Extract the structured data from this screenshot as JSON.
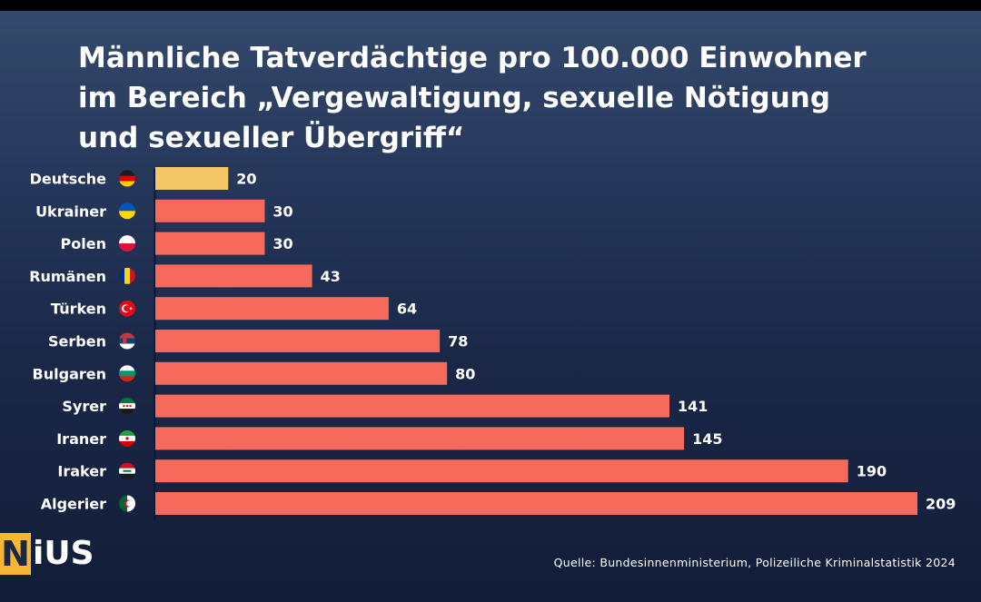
{
  "chart_data": {
    "type": "bar",
    "orientation": "horizontal",
    "title_lines": [
      "Männliche Tatverdächtige pro 100.000 Einwohner",
      "im Bereich „Vergewaltigung, sexuelle Nötigung",
      "und sexueller Übergriff“"
    ],
    "categories": [
      "Deutsche",
      "Ukrainer",
      "Polen",
      "Rumänen",
      "Türken",
      "Serben",
      "Bulgaren",
      "Syrer",
      "Iraner",
      "Iraker",
      "Algerier"
    ],
    "values": [
      20,
      30,
      30,
      43,
      64,
      78,
      80,
      141,
      145,
      190,
      209
    ],
    "flags": [
      "flag-germany-icon",
      "flag-ukraine-icon",
      "flag-poland-icon",
      "flag-romania-icon",
      "flag-turkey-icon",
      "flag-serbia-icon",
      "flag-bulgaria-icon",
      "flag-syria-icon",
      "flag-iran-icon",
      "flag-iraq-icon",
      "flag-algeria-icon"
    ],
    "xlim": [
      0,
      209
    ],
    "grid": false,
    "highlight_color": "#f5c867",
    "bar_color": "#f56a5a"
  },
  "brand": {
    "logo_first": "N",
    "logo_rest": "iUS"
  },
  "source": "Quelle: Bundesinnenministerium, Polizeiliche Kriminalstatistik 2024"
}
